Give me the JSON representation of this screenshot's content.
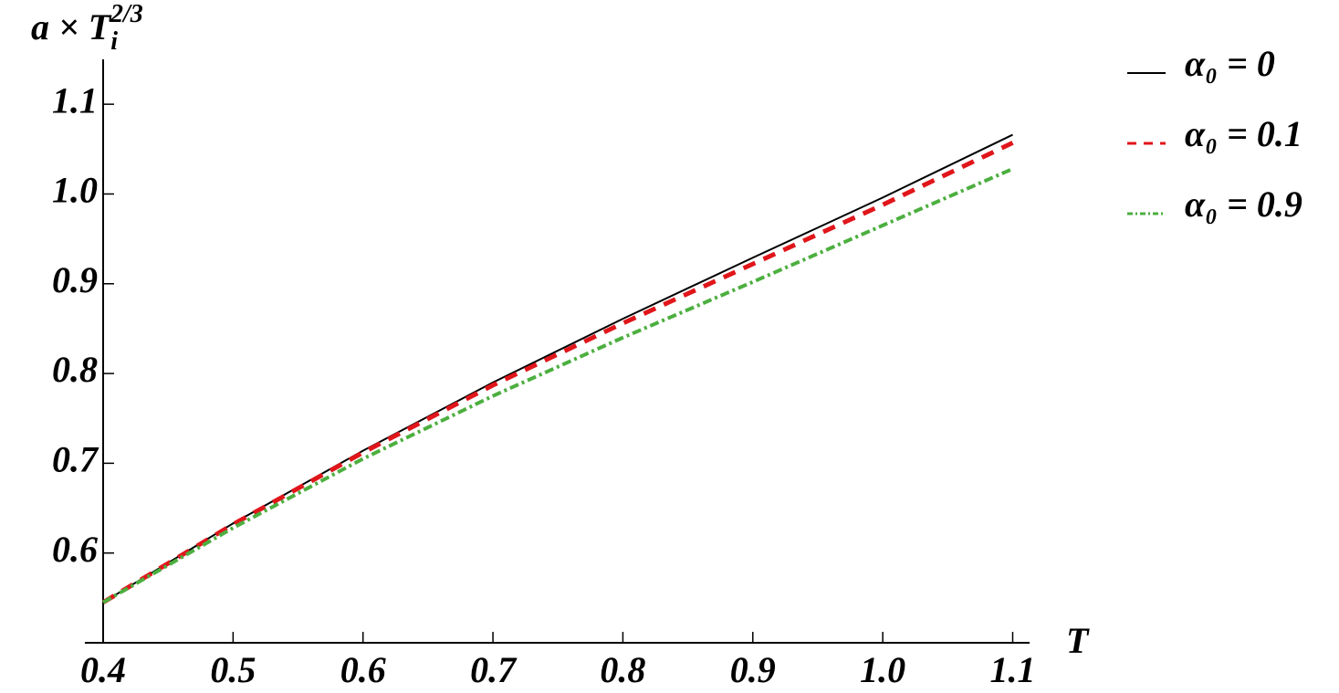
{
  "chart_data": {
    "type": "line",
    "x_label": "T",
    "y_label": {
      "base": "a × T",
      "sub": "i",
      "sup": "2/3"
    },
    "x": [
      0.4,
      0.5,
      0.6,
      0.7,
      0.8,
      0.9,
      1.0,
      1.1
    ],
    "series": [
      {
        "name": "α₀ = 0",
        "color": "#000000",
        "style": "solid",
        "values": [
          0.545,
          0.633,
          0.714,
          0.79,
          0.861,
          0.929,
          0.996,
          1.066
        ]
      },
      {
        "name": "α₀ = 0.1",
        "color": "#e0161b",
        "style": "dashed",
        "values": [
          0.545,
          0.632,
          0.712,
          0.787,
          0.856,
          0.922,
          0.988,
          1.057
        ]
      },
      {
        "name": "α₀ = 0.9",
        "color": "#4caf3f",
        "style": "dotdash",
        "values": [
          0.545,
          0.628,
          0.705,
          0.775,
          0.84,
          0.902,
          0.965,
          1.028
        ]
      }
    ],
    "xlim": [
      0.4,
      1.113
    ],
    "ylim": [
      0.5,
      1.15
    ],
    "xticks": [
      0.4,
      0.5,
      0.6,
      0.7,
      0.8,
      0.9,
      {
        "value": 1.0,
        "label": "1.0"
      },
      1.1
    ],
    "yticks": [
      0.6,
      0.7,
      0.8,
      0.9,
      {
        "value": 1.0,
        "label": "1.0"
      },
      1.1
    ],
    "grid": false,
    "legend": "right"
  }
}
